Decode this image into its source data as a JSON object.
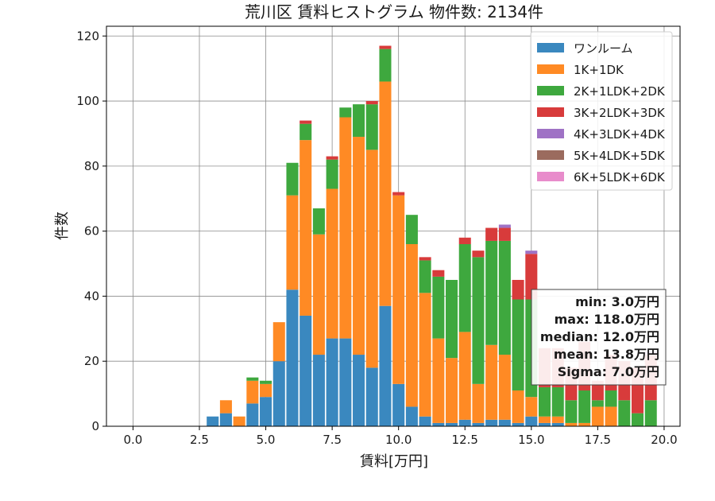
{
  "chart_data": {
    "type": "bar",
    "stacked": true,
    "title": "荒川区 賃料ヒストグラム 物件数: 2134件",
    "xlabel": "賃料[万円]",
    "ylabel": "件数",
    "xlim": [
      -1.0,
      20.6
    ],
    "ylim": [
      0,
      123
    ],
    "xticks": [
      0.0,
      2.5,
      5.0,
      7.5,
      10.0,
      12.5,
      15.0,
      17.5,
      20.0
    ],
    "xtick_labels": [
      "0.0",
      "2.5",
      "5.0",
      "7.5",
      "10.0",
      "12.5",
      "15.0",
      "17.5",
      "20.0"
    ],
    "yticks": [
      0,
      20,
      40,
      60,
      80,
      100,
      120
    ],
    "ytick_labels": [
      "0",
      "20",
      "40",
      "60",
      "80",
      "100",
      "120"
    ],
    "grid": true,
    "legend_position": "top-right",
    "bin_width": 0.5,
    "x": [
      3.0,
      3.5,
      4.0,
      4.5,
      5.0,
      5.5,
      6.0,
      6.5,
      7.0,
      7.5,
      8.0,
      8.5,
      9.0,
      9.5,
      10.0,
      10.5,
      11.0,
      11.5,
      12.0,
      12.5,
      13.0,
      13.5,
      14.0,
      14.5,
      15.0,
      15.5,
      16.0,
      16.5,
      17.0,
      17.5,
      18.0,
      18.5,
      19.0,
      19.5
    ],
    "series": [
      {
        "name": "ワンルーム",
        "color": "#3a88bf",
        "values": [
          3,
          4,
          0,
          7,
          9,
          20,
          42,
          34,
          22,
          27,
          27,
          22,
          18,
          37,
          13,
          6,
          3,
          1,
          1,
          2,
          1,
          2,
          2,
          1,
          3,
          1,
          1,
          0,
          0,
          0,
          0,
          0,
          0,
          0
        ]
      },
      {
        "name": "1K+1DK",
        "color": "#ff8a24",
        "values": [
          0,
          4,
          3,
          7,
          4,
          12,
          29,
          54,
          37,
          46,
          68,
          67,
          67,
          69,
          58,
          50,
          38,
          26,
          20,
          27,
          12,
          23,
          20,
          10,
          6,
          2,
          2,
          1,
          1,
          6,
          6,
          0,
          0,
          0
        ]
      },
      {
        "name": "2K+1LDK+2DK",
        "color": "#3ea83e",
        "values": [
          0,
          0,
          0,
          1,
          1,
          0,
          10,
          5,
          8,
          9,
          3,
          10,
          14,
          10,
          0,
          9,
          10,
          19,
          24,
          27,
          39,
          32,
          35,
          28,
          30,
          9,
          9,
          7,
          10,
          2,
          5,
          8,
          4,
          8
        ]
      },
      {
        "name": "3K+2LDK+3DK",
        "color": "#d83b3b",
        "values": [
          0,
          0,
          0,
          0,
          0,
          0,
          0,
          1,
          0,
          1,
          0,
          0,
          1,
          1,
          1,
          0,
          1,
          2,
          0,
          2,
          2,
          4,
          4,
          6,
          14,
          12,
          12,
          10,
          15,
          6,
          11,
          12,
          14,
          14
        ]
      },
      {
        "name": "4K+3LDK+4DK",
        "color": "#9f72c5",
        "values": [
          0,
          0,
          0,
          0,
          0,
          0,
          0,
          0,
          0,
          0,
          0,
          0,
          0,
          0,
          0,
          0,
          0,
          0,
          0,
          0,
          0,
          0,
          1,
          0,
          1,
          0,
          0,
          0,
          0,
          0,
          0,
          0,
          0,
          1
        ]
      },
      {
        "name": "5K+4LDK+5DK",
        "color": "#9b6b5e",
        "values": [
          0,
          0,
          0,
          0,
          0,
          0,
          0,
          0,
          0,
          0,
          0,
          0,
          0,
          0,
          0,
          0,
          0,
          0,
          0,
          0,
          0,
          0,
          0,
          0,
          0,
          0,
          0,
          0,
          0,
          0,
          0,
          0,
          0,
          0
        ]
      },
      {
        "name": "6K+5LDK+6DK",
        "color": "#e88ccb",
        "values": [
          0,
          0,
          0,
          0,
          0,
          0,
          0,
          0,
          0,
          0,
          0,
          0,
          0,
          0,
          0,
          0,
          0,
          0,
          0,
          0,
          0,
          0,
          0,
          0,
          0,
          0,
          0,
          0,
          0,
          0,
          0,
          0,
          0,
          0
        ]
      }
    ],
    "stats_box": {
      "lines": [
        "min: 3.0万円",
        "max: 118.0万円",
        "median: 12.0万円",
        "mean: 13.8万円",
        "Sigma: 7.0万円"
      ]
    }
  }
}
